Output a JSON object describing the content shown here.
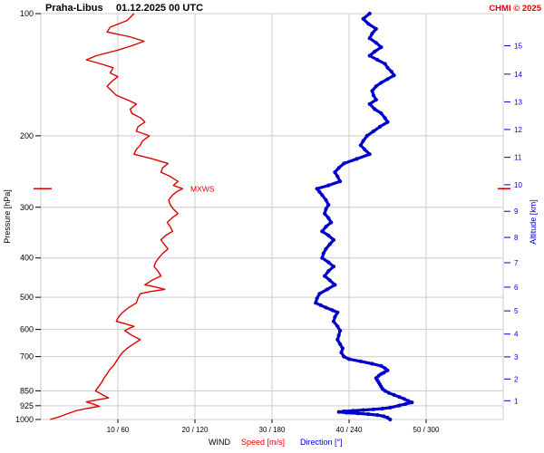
{
  "header": {
    "station": "Praha-Libus",
    "datetime": "01.12.2025 00 UTC",
    "copyright": "CHMI © 2025"
  },
  "axes": {
    "pressure_label": "Pressure [hPa]",
    "altitude_label": "Altitude [km]"
  },
  "legend": {
    "wind": "WIND",
    "speed": "Speed [m/s]",
    "direction": "Direction [°]"
  },
  "colors": {
    "speed": "#dd0000",
    "direction": "#0000cc",
    "grid": "#cccccc",
    "text": "#000000"
  },
  "chart_data": {
    "type": "line",
    "title": "Praha-Libus 01.12.2025 00 UTC vertical wind profile",
    "y_axis": {
      "label": "Pressure [hPa]",
      "scale": "log",
      "range": [
        100,
        1000
      ],
      "ticks": [
        100,
        200,
        300,
        400,
        500,
        600,
        700,
        850,
        925,
        1000
      ]
    },
    "y2_axis": {
      "label": "Altitude [km]",
      "ticks": [
        {
          "km": 15,
          "hpa": 120
        },
        {
          "km": 14,
          "hpa": 141
        },
        {
          "km": 13,
          "hpa": 165
        },
        {
          "km": 12,
          "hpa": 193
        },
        {
          "km": 11,
          "hpa": 226
        },
        {
          "km": 10,
          "hpa": 264
        },
        {
          "km": 9,
          "hpa": 307
        },
        {
          "km": 8,
          "hpa": 356
        },
        {
          "km": 7,
          "hpa": 411
        },
        {
          "km": 6,
          "hpa": 472
        },
        {
          "km": 5,
          "hpa": 540
        },
        {
          "km": 4,
          "hpa": 616
        },
        {
          "km": 3,
          "hpa": 701
        },
        {
          "km": 2,
          "hpa": 795
        },
        {
          "km": 1,
          "hpa": 899
        }
      ]
    },
    "x_axis": {
      "label": "WIND",
      "tick_labels": [
        "10 / 60",
        "20 / 120",
        "30 / 180",
        "40 / 240",
        "50 / 300"
      ],
      "speed_range_mps": [
        0,
        60
      ],
      "direction_range_deg": [
        0,
        360
      ]
    },
    "series": [
      {
        "name": "Speed [m/s]",
        "unit": "m/s",
        "color": "#dd0000",
        "points": [
          [
            100,
            12.1
          ],
          [
            104,
            11.2
          ],
          [
            108,
            9.0
          ],
          [
            111,
            8.6
          ],
          [
            114,
            11.5
          ],
          [
            117,
            13.4
          ],
          [
            120,
            11.8
          ],
          [
            123,
            10.0
          ],
          [
            127,
            7.2
          ],
          [
            130,
            5.9
          ],
          [
            133,
            7.8
          ],
          [
            136,
            9.4
          ],
          [
            140,
            9.0
          ],
          [
            143,
            10.0
          ],
          [
            147,
            9.2
          ],
          [
            151,
            8.6
          ],
          [
            155,
            9.2
          ],
          [
            159,
            9.8
          ],
          [
            163,
            11.2
          ],
          [
            167,
            12.4
          ],
          [
            172,
            11.6
          ],
          [
            176,
            11.8
          ],
          [
            181,
            13.0
          ],
          [
            185,
            13.5
          ],
          [
            190,
            12.6
          ],
          [
            195,
            12.4
          ],
          [
            200,
            14.1
          ],
          [
            206,
            13.2
          ],
          [
            211,
            12.9
          ],
          [
            216,
            12.4
          ],
          [
            222,
            12.1
          ],
          [
            228,
            14.5
          ],
          [
            234,
            16.5
          ],
          [
            240,
            15.8
          ],
          [
            246,
            15.6
          ],
          [
            252,
            16.8
          ],
          [
            259,
            17.8
          ],
          [
            265,
            17.2
          ],
          [
            270,
            18.4
          ],
          [
            275,
            17.6
          ],
          [
            280,
            17.1
          ],
          [
            288,
            16.6
          ],
          [
            296,
            16.8
          ],
          [
            303,
            17.2
          ],
          [
            311,
            17.8
          ],
          [
            319,
            17.0
          ],
          [
            327,
            16.4
          ],
          [
            335,
            16.8
          ],
          [
            344,
            17.1
          ],
          [
            352,
            16.2
          ],
          [
            361,
            15.6
          ],
          [
            370,
            16.0
          ],
          [
            380,
            16.5
          ],
          [
            390,
            15.8
          ],
          [
            400,
            15.3
          ],
          [
            410,
            14.9
          ],
          [
            420,
            14.7
          ],
          [
            431,
            15.2
          ],
          [
            443,
            15.6
          ],
          [
            454,
            14.4
          ],
          [
            466,
            13.5
          ],
          [
            472,
            15.0
          ],
          [
            478,
            16.1
          ],
          [
            484,
            14.2
          ],
          [
            490,
            12.9
          ],
          [
            503,
            12.6
          ],
          [
            516,
            12.4
          ],
          [
            530,
            11.4
          ],
          [
            545,
            10.6
          ],
          [
            559,
            10.1
          ],
          [
            573,
            9.8
          ],
          [
            581,
            11.0
          ],
          [
            590,
            12.1
          ],
          [
            597,
            11.4
          ],
          [
            604,
            10.9
          ],
          [
            620,
            11.8
          ],
          [
            636,
            12.9
          ],
          [
            652,
            12.0
          ],
          [
            668,
            11.2
          ],
          [
            684,
            10.6
          ],
          [
            700,
            10.2
          ],
          [
            719,
            9.8
          ],
          [
            738,
            9.4
          ],
          [
            755,
            8.9
          ],
          [
            772,
            8.6
          ],
          [
            791,
            8.2
          ],
          [
            810,
            7.9
          ],
          [
            830,
            7.5
          ],
          [
            850,
            7.1
          ],
          [
            867,
            7.9
          ],
          [
            885,
            8.8
          ],
          [
            895,
            7.2
          ],
          [
            905,
            5.9
          ],
          [
            916,
            6.8
          ],
          [
            928,
            7.6
          ],
          [
            939,
            6.0
          ],
          [
            950,
            4.7
          ],
          [
            967,
            3.5
          ],
          [
            985,
            2.4
          ],
          [
            1000,
            1.2
          ]
        ]
      },
      {
        "name": "Direction [°]",
        "unit": "°",
        "color": "#0000cc",
        "points": [
          [
            100,
            256
          ],
          [
            103,
            251
          ],
          [
            106,
            255
          ],
          [
            109,
            261
          ],
          [
            112,
            258
          ],
          [
            115,
            256
          ],
          [
            118,
            261
          ],
          [
            121,
            265
          ],
          [
            124,
            260
          ],
          [
            127,
            256
          ],
          [
            130,
            262
          ],
          [
            133,
            268
          ],
          [
            136,
            270
          ],
          [
            139,
            273
          ],
          [
            142,
            275
          ],
          [
            145,
            270
          ],
          [
            148,
            265
          ],
          [
            151,
            261
          ],
          [
            155,
            258
          ],
          [
            159,
            259
          ],
          [
            163,
            261
          ],
          [
            167,
            256
          ],
          [
            172,
            260
          ],
          [
            176,
            265
          ],
          [
            181,
            268
          ],
          [
            185,
            270
          ],
          [
            190,
            264
          ],
          [
            195,
            259
          ],
          [
            200,
            254
          ],
          [
            206,
            251
          ],
          [
            211,
            249
          ],
          [
            216,
            252
          ],
          [
            222,
            256
          ],
          [
            228,
            246
          ],
          [
            234,
            236
          ],
          [
            240,
            232
          ],
          [
            246,
            229
          ],
          [
            252,
            231
          ],
          [
            259,
            233
          ],
          [
            265,
            224
          ],
          [
            270,
            215
          ],
          [
            275,
            217
          ],
          [
            280,
            219
          ],
          [
            288,
            222
          ],
          [
            296,
            224
          ],
          [
            303,
            222
          ],
          [
            311,
            221
          ],
          [
            319,
            224
          ],
          [
            327,
            226
          ],
          [
            335,
            222
          ],
          [
            344,
            219
          ],
          [
            352,
            224
          ],
          [
            361,
            228
          ],
          [
            370,
            225
          ],
          [
            380,
            222
          ],
          [
            390,
            220
          ],
          [
            400,
            219
          ],
          [
            410,
            224
          ],
          [
            420,
            228
          ],
          [
            431,
            224
          ],
          [
            443,
            221
          ],
          [
            454,
            225
          ],
          [
            466,
            229
          ],
          [
            478,
            223
          ],
          [
            490,
            217
          ],
          [
            503,
            215
          ],
          [
            516,
            214
          ],
          [
            523,
            218
          ],
          [
            530,
            222
          ],
          [
            538,
            227
          ],
          [
            545,
            231
          ],
          [
            559,
            229
          ],
          [
            573,
            228
          ],
          [
            590,
            231
          ],
          [
            604,
            233
          ],
          [
            620,
            232
          ],
          [
            636,
            231
          ],
          [
            652,
            233
          ],
          [
            668,
            235
          ],
          [
            684,
            234
          ],
          [
            700,
            236
          ],
          [
            710,
            240
          ],
          [
            719,
            249
          ],
          [
            729,
            258
          ],
          [
            738,
            265
          ],
          [
            748,
            268
          ],
          [
            757,
            270
          ],
          [
            767,
            267
          ],
          [
            772,
            265
          ],
          [
            781,
            263
          ],
          [
            791,
            261
          ],
          [
            800,
            262
          ],
          [
            810,
            263
          ],
          [
            820,
            264
          ],
          [
            830,
            265
          ],
          [
            840,
            266
          ],
          [
            850,
            268
          ],
          [
            860,
            271
          ],
          [
            870,
            275
          ],
          [
            880,
            279
          ],
          [
            890,
            283
          ],
          [
            900,
            286
          ],
          [
            908,
            289
          ],
          [
            916,
            284
          ],
          [
            924,
            279
          ],
          [
            935,
            272
          ],
          [
            940,
            266
          ],
          [
            944,
            259
          ],
          [
            948,
            251
          ],
          [
            952,
            243
          ],
          [
            955,
            236
          ],
          [
            958,
            232
          ],
          [
            962,
            238
          ],
          [
            966,
            247
          ],
          [
            970,
            255
          ],
          [
            975,
            262
          ],
          [
            982,
            267
          ],
          [
            990,
            270
          ],
          [
            1000,
            272
          ]
        ]
      }
    ],
    "annotations": [
      {
        "label": "MXWS",
        "pressure_hpa": 270,
        "color": "#dd0000"
      }
    ]
  }
}
